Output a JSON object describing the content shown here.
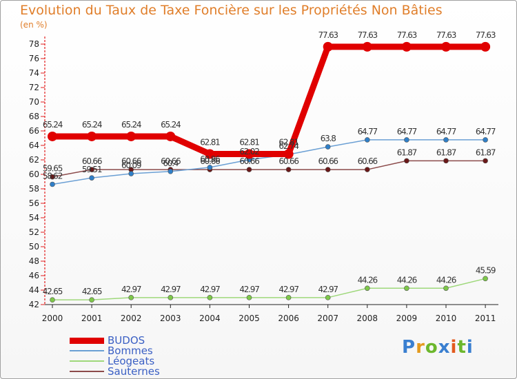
{
  "title": "Evolution du Taux de Taxe Foncière sur les Propriétés Non Bâties",
  "subtitle": "(en %)",
  "logo": {
    "text": "Proxiti",
    "colors": [
      "#3a7fd0",
      "#e39a1e",
      "#6cb72d",
      "#3a7fd0",
      "#e35a1e",
      "#6cb72d",
      "#3a7fd0"
    ]
  },
  "chart_data": {
    "type": "line",
    "title": "Evolution du Taux de Taxe Foncière sur les Propriétés Non Bâties",
    "ylabel": "(en %)",
    "xlabel": "",
    "x": [
      "2000",
      "2001",
      "2002",
      "2003",
      "2004",
      "2005",
      "2006",
      "2007",
      "2008",
      "2009",
      "2010",
      "2011"
    ],
    "ylim": [
      42,
      78
    ],
    "yticks": [
      42,
      44,
      46,
      48,
      50,
      52,
      54,
      56,
      58,
      60,
      62,
      64,
      66,
      68,
      70,
      72,
      74,
      76,
      78
    ],
    "legend_position": "bottom-left",
    "series": [
      {
        "name": "BUDOS",
        "color": "#e00000",
        "width": 9,
        "marker": 7,
        "dot": "#e00000",
        "values": [
          65.24,
          65.24,
          65.24,
          65.24,
          62.81,
          62.81,
          62.81,
          77.63,
          77.63,
          77.63,
          77.63,
          77.63
        ],
        "labels": [
          "65.24",
          "65.24",
          "65.24",
          "65.24",
          "62.81",
          "62.81",
          "62.81",
          "77.63",
          "77.63",
          "77.63",
          "77.63",
          "77.63"
        ]
      },
      {
        "name": "Bommes",
        "color": "#6a9fd4",
        "width": 1.5,
        "marker": 3.5,
        "dot": "#2f7fc8",
        "values": [
          58.62,
          59.51,
          60.09,
          60.4,
          60.96,
          62.02,
          62.74,
          63.8,
          64.77,
          64.77,
          64.77,
          64.77
        ],
        "labels": [
          "58.62",
          "59.51",
          "60.09",
          "60.4",
          "60.96",
          "62.02",
          "62.74",
          "63.8",
          "64.77",
          "64.77",
          "64.77",
          "64.77"
        ]
      },
      {
        "name": "Léogeats",
        "color": "#9ed87a",
        "width": 1.5,
        "marker": 3.5,
        "dot": "#7ec84a",
        "values": [
          42.65,
          42.65,
          42.97,
          42.97,
          42.97,
          42.97,
          42.97,
          42.97,
          44.26,
          44.26,
          44.26,
          45.59
        ],
        "labels": [
          "42.65",
          "42.65",
          "42.97",
          "42.97",
          "42.97",
          "42.97",
          "42.97",
          "42.97",
          "44.26",
          "44.26",
          "44.26",
          "45.59"
        ]
      },
      {
        "name": "Sauternes",
        "color": "#8b4a4a",
        "width": 1.5,
        "marker": 3.5,
        "dot": "#6a1818",
        "values": [
          59.65,
          60.66,
          60.66,
          60.66,
          60.66,
          60.66,
          60.66,
          60.66,
          60.66,
          61.87,
          61.87,
          61.87
        ],
        "labels": [
          "59.65",
          "60.66",
          "60.66",
          "60.66",
          "60.66",
          "60.66",
          "60.66",
          "60.66",
          "60.66",
          "61.87",
          "61.87",
          "61.87"
        ]
      }
    ]
  }
}
